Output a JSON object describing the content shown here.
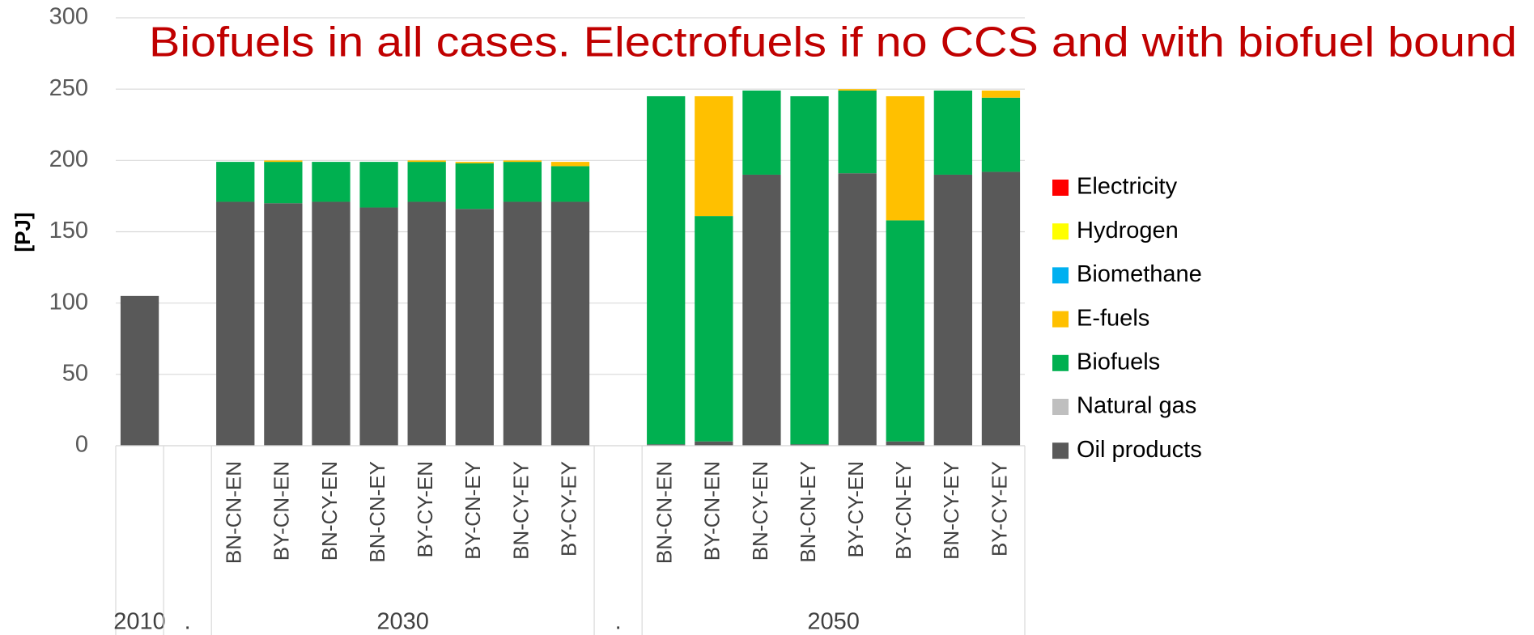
{
  "chart_data": {
    "type": "stacked_bar",
    "title": "Biofuels in all cases. Electrofuels if no CCS and with biofuel bound",
    "y_label": "[PJ]",
    "categories": [
      {
        "group": "2010",
        "label": null
      },
      {
        "group": ".",
        "label": null
      },
      {
        "group": "2030",
        "label": "BN-CN-EN"
      },
      {
        "group": "2030",
        "label": "BY-CN-EN"
      },
      {
        "group": "2030",
        "label": "BN-CY-EN"
      },
      {
        "group": "2030",
        "label": "BN-CN-EY"
      },
      {
        "group": "2030",
        "label": "BY-CY-EN"
      },
      {
        "group": "2030",
        "label": "BY-CN-EY"
      },
      {
        "group": "2030",
        "label": "BN-CY-EY"
      },
      {
        "group": "2030",
        "label": "BY-CY-EY"
      },
      {
        "group": ".",
        "label": null
      },
      {
        "group": "2050",
        "label": "BN-CN-EN"
      },
      {
        "group": "2050",
        "label": "BY-CN-EN"
      },
      {
        "group": "2050",
        "label": "BN-CY-EN"
      },
      {
        "group": "2050",
        "label": "BN-CN-EY"
      },
      {
        "group": "2050",
        "label": "BY-CY-EN"
      },
      {
        "group": "2050",
        "label": "BY-CN-EY"
      },
      {
        "group": "2050",
        "label": "BN-CY-EY"
      },
      {
        "group": "2050",
        "label": "BY-CY-EY"
      }
    ],
    "series": [
      {
        "name": "Oil products",
        "color": "#595959",
        "values": [
          105,
          null,
          171,
          170,
          171,
          167,
          171,
          166,
          171,
          171,
          null,
          1,
          3,
          190,
          1,
          191,
          3,
          190,
          192
        ]
      },
      {
        "name": "Natural gas",
        "color": "#bfbfbf",
        "values": [
          0,
          null,
          0,
          0,
          0,
          0,
          0,
          0,
          0,
          0,
          null,
          0,
          0,
          0,
          0,
          0,
          0,
          0,
          0
        ]
      },
      {
        "name": "Biofuels",
        "color": "#00b050",
        "values": [
          0,
          null,
          28,
          29,
          28,
          32,
          28,
          32,
          28,
          25,
          null,
          244,
          158,
          59,
          244,
          58,
          155,
          59,
          52
        ]
      },
      {
        "name": "E-fuels",
        "color": "#ffc000",
        "values": [
          0,
          null,
          0,
          1,
          0,
          0,
          1,
          1,
          1,
          3,
          null,
          0,
          84,
          0,
          0,
          1,
          87,
          0,
          5
        ]
      },
      {
        "name": "Biomethane",
        "color": "#00b0f0",
        "values": [
          0,
          null,
          0,
          0,
          0,
          0,
          0,
          0,
          0,
          0,
          null,
          0,
          0,
          0,
          0,
          0,
          0,
          0,
          0
        ]
      },
      {
        "name": "Hydrogen",
        "color": "#ffff00",
        "values": [
          0,
          null,
          0,
          0,
          0,
          0,
          0,
          0,
          0,
          0,
          null,
          0,
          0,
          0,
          0,
          0,
          0,
          0,
          0
        ]
      },
      {
        "name": "Electricity",
        "color": "#ff0000",
        "values": [
          0,
          null,
          0,
          0,
          0,
          0,
          0,
          0,
          0,
          0,
          null,
          0,
          0,
          0,
          0,
          0,
          0,
          0,
          0
        ]
      }
    ],
    "ylim": [
      0,
      300
    ],
    "yticks": [
      0,
      50,
      100,
      150,
      200,
      250,
      300
    ],
    "grid": true,
    "legend": "right"
  }
}
